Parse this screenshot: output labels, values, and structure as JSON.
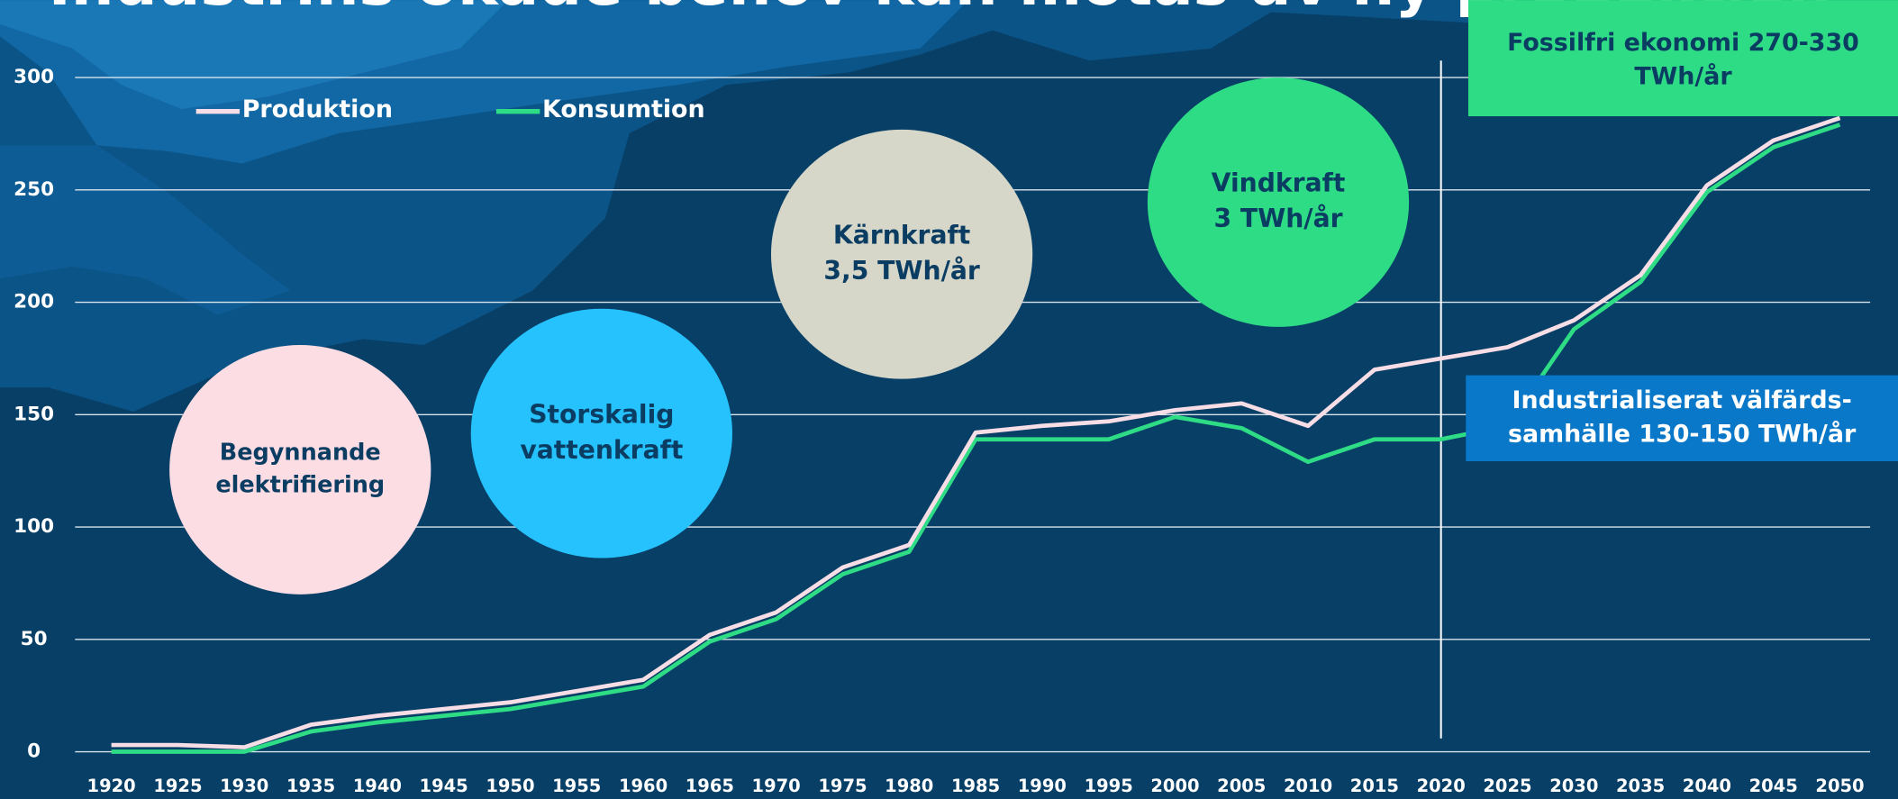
{
  "chart_data": {
    "type": "line",
    "title": "Industrins ökade behov kan mötas av ny produktion",
    "categories": [
      "1920",
      "1925",
      "1930",
      "1935",
      "1940",
      "1945",
      "1950",
      "1955",
      "1960",
      "1965",
      "1970",
      "1975",
      "1980",
      "1985",
      "1990",
      "1995",
      "2000",
      "2005",
      "2010",
      "2015",
      "2020",
      "2025",
      "2030",
      "2035",
      "2040",
      "2045",
      "2050"
    ],
    "series": [
      {
        "name": "Produktion",
        "color": "#f6dde6",
        "values": [
          3,
          3,
          2,
          12,
          16,
          19,
          22,
          27,
          32,
          52,
          62,
          82,
          92,
          142,
          145,
          147,
          152,
          155,
          145,
          170,
          175,
          180,
          192,
          212,
          252,
          272,
          282
        ]
      },
      {
        "name": "Konsumtion",
        "color": "#2edc86",
        "values": [
          0,
          0,
          0,
          9,
          13,
          16,
          19,
          24,
          29,
          49,
          59,
          79,
          89,
          139,
          139,
          139,
          149,
          144,
          129,
          139,
          139,
          145,
          188,
          209,
          249,
          269,
          279
        ]
      }
    ],
    "ylim": [
      0,
      300
    ],
    "yticks": [
      0,
      50,
      100,
      150,
      200,
      250,
      300
    ],
    "grid": true,
    "legend": "top-left",
    "annotations": [
      {
        "lines": [
          "Begynnande",
          "elektrifiering"
        ]
      },
      {
        "lines": [
          "Storskalig",
          "vattenkraft"
        ]
      },
      {
        "lines": [
          "Kärnkraft",
          "3,5 TWh/år"
        ]
      },
      {
        "lines": [
          "Vindkraft",
          "3 TWh/år"
        ]
      },
      {
        "lines": [
          "Fossilfri ekonomi 270-330",
          "TWh/år"
        ]
      },
      {
        "lines": [
          "Industrialiserat välfärds-",
          "samhälle 130-150 TWh/år"
        ]
      }
    ]
  }
}
